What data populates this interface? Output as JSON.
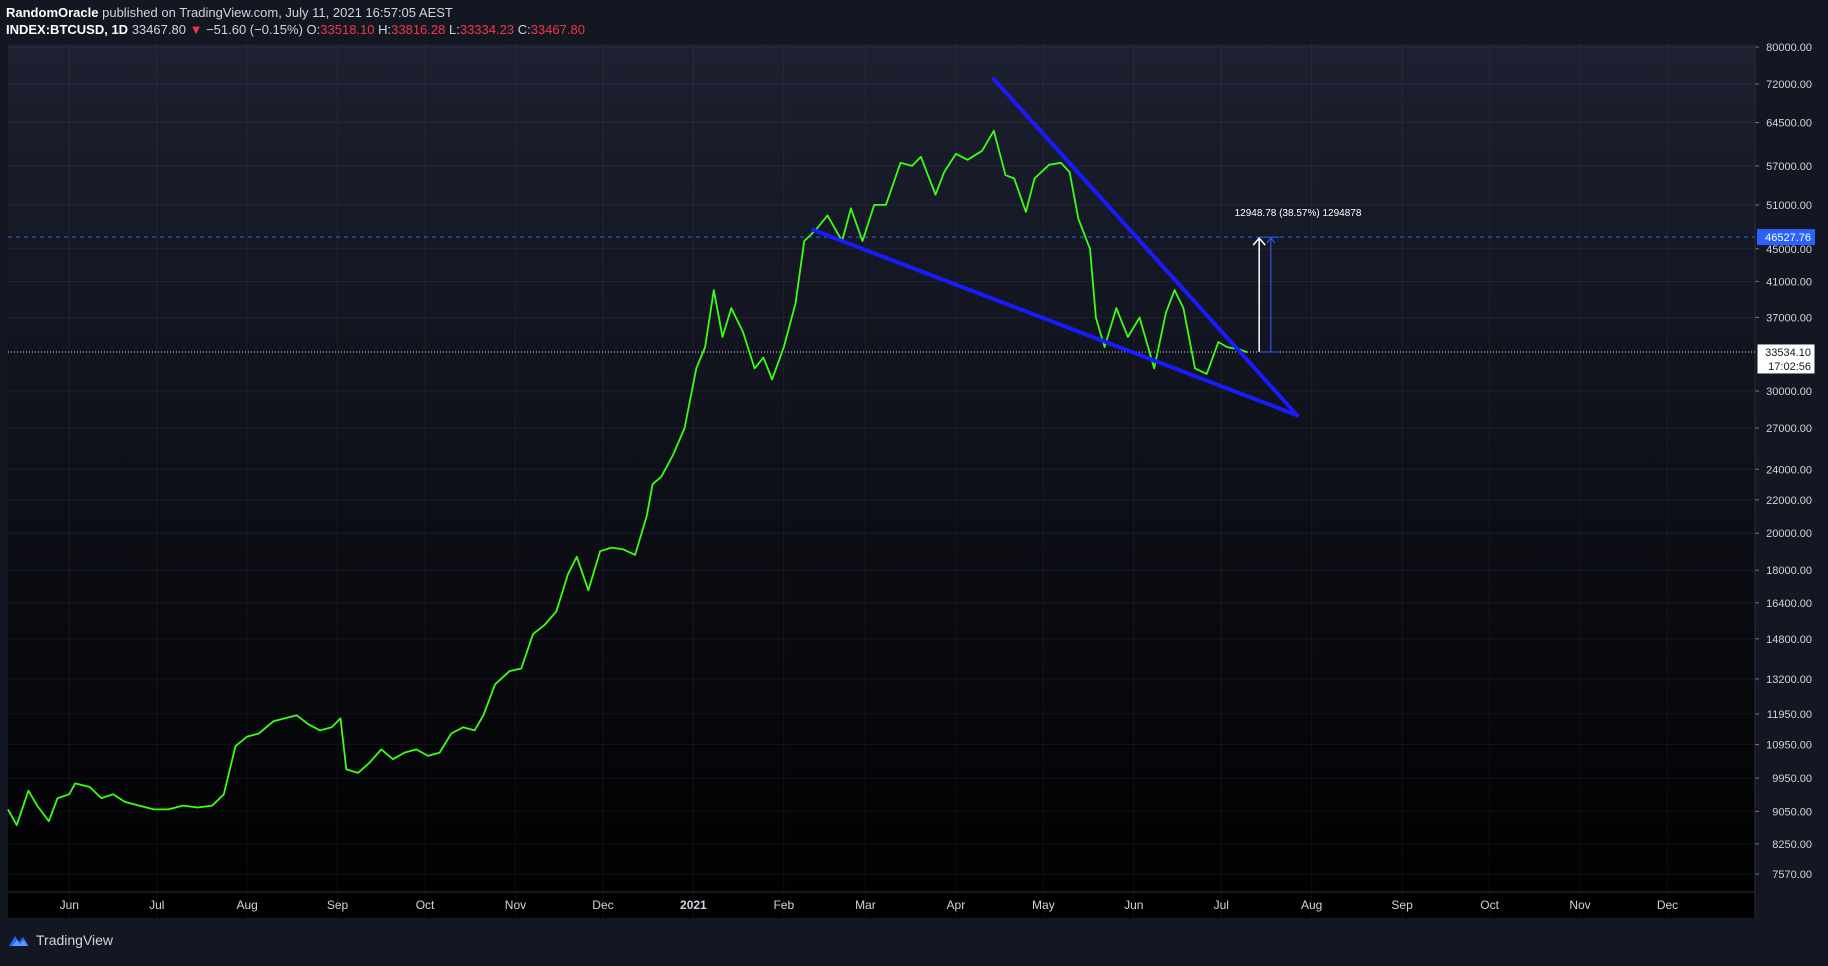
{
  "header": {
    "author": "RandomOracle",
    "published": "published on TradingView.com, July 11, 2021 16:57:05 AEST",
    "symbol": "INDEX:BTCUSD, 1D",
    "last": "33467.80",
    "change_arrow": "▼",
    "change": "−51.60 (−0.15%)",
    "o_label": "O:",
    "o_value": "33518.10",
    "h_label": "H:",
    "h_value": "33816.28",
    "l_label": "L:",
    "l_value": "33334.23",
    "c_label": "C:",
    "c_value": "33467.80"
  },
  "footer": {
    "brand": "TradingView"
  },
  "colors": {
    "background": "#131722",
    "price_line": "#39ff14",
    "trendline": "#1a1aff",
    "down": "#f23645",
    "text": "#d1d4dc"
  },
  "chart_data": {
    "type": "line",
    "title": "",
    "xlabel": "",
    "ylabel": "",
    "y_scale": "log",
    "ylim": [
      7000,
      82000
    ],
    "x_range": [
      "2020-05-11",
      "2021-12-31"
    ],
    "y_ticks": [
      "80000.00",
      "72000.00",
      "64500.00",
      "57000.00",
      "51000.00",
      "45000.00",
      "41000.00",
      "37000.00",
      "30000.00",
      "27000.00",
      "24000.00",
      "22000.00",
      "20000.00",
      "18000.00",
      "16400.00",
      "14800.00",
      "13200.00",
      "11950.00",
      "10950.00",
      "9950.00",
      "9050.00",
      "8250.00",
      "7570.00"
    ],
    "x_ticks": [
      {
        "date": "2020-06-01",
        "label": "Jun"
      },
      {
        "date": "2020-07-01",
        "label": "Jul"
      },
      {
        "date": "2020-08-01",
        "label": "Aug"
      },
      {
        "date": "2020-09-01",
        "label": "Sep"
      },
      {
        "date": "2020-10-01",
        "label": "Oct"
      },
      {
        "date": "2020-11-01",
        "label": "Nov"
      },
      {
        "date": "2020-12-01",
        "label": "Dec"
      },
      {
        "date": "2021-01-01",
        "label": "2021",
        "bold": true
      },
      {
        "date": "2021-02-01",
        "label": "Feb"
      },
      {
        "date": "2021-03-01",
        "label": "Mar"
      },
      {
        "date": "2021-04-01",
        "label": "Apr"
      },
      {
        "date": "2021-05-01",
        "label": "May"
      },
      {
        "date": "2021-06-01",
        "label": "Jun"
      },
      {
        "date": "2021-07-01",
        "label": "Jul"
      },
      {
        "date": "2021-08-01",
        "label": "Aug"
      },
      {
        "date": "2021-09-01",
        "label": "Sep"
      },
      {
        "date": "2021-10-01",
        "label": "Oct"
      },
      {
        "date": "2021-11-01",
        "label": "Nov"
      },
      {
        "date": "2021-12-01",
        "label": "Dec"
      }
    ],
    "series": [
      {
        "x": [
          "2020-05-11",
          "2020-05-14",
          "2020-05-18",
          "2020-05-21",
          "2020-05-25",
          "2020-05-28",
          "2020-06-01",
          "2020-06-03",
          "2020-06-08",
          "2020-06-12",
          "2020-06-16",
          "2020-06-20",
          "2020-06-25",
          "2020-06-30",
          "2020-07-05",
          "2020-07-10",
          "2020-07-15",
          "2020-07-20",
          "2020-07-24",
          "2020-07-28",
          "2020-08-01",
          "2020-08-05",
          "2020-08-10",
          "2020-08-14",
          "2020-08-18",
          "2020-08-22",
          "2020-08-26",
          "2020-08-30",
          "2020-09-02",
          "2020-09-04",
          "2020-09-08",
          "2020-09-12",
          "2020-09-16",
          "2020-09-20",
          "2020-09-24",
          "2020-09-28",
          "2020-10-02",
          "2020-10-06",
          "2020-10-10",
          "2020-10-14",
          "2020-10-18",
          "2020-10-21",
          "2020-10-25",
          "2020-10-30",
          "2020-11-03",
          "2020-11-07",
          "2020-11-11",
          "2020-11-15",
          "2020-11-19",
          "2020-11-22",
          "2020-11-26",
          "2020-11-30",
          "2020-12-04",
          "2020-12-08",
          "2020-12-12",
          "2020-12-16",
          "2020-12-18",
          "2020-12-21",
          "2020-12-25",
          "2020-12-29",
          "2021-01-02",
          "2021-01-05",
          "2021-01-08",
          "2021-01-11",
          "2021-01-14",
          "2021-01-18",
          "2021-01-22",
          "2021-01-25",
          "2021-01-28",
          "2021-02-01",
          "2021-02-05",
          "2021-02-08",
          "2021-02-12",
          "2021-02-16",
          "2021-02-21",
          "2021-02-24",
          "2021-02-28",
          "2021-03-04",
          "2021-03-08",
          "2021-03-13",
          "2021-03-17",
          "2021-03-20",
          "2021-03-25",
          "2021-03-28",
          "2021-04-01",
          "2021-04-05",
          "2021-04-10",
          "2021-04-14",
          "2021-04-18",
          "2021-04-21",
          "2021-04-25",
          "2021-04-28",
          "2021-05-03",
          "2021-05-07",
          "2021-05-10",
          "2021-05-13",
          "2021-05-17",
          "2021-05-19",
          "2021-05-22",
          "2021-05-26",
          "2021-05-30",
          "2021-06-03",
          "2021-06-08",
          "2021-06-12",
          "2021-06-15",
          "2021-06-18",
          "2021-06-22",
          "2021-06-26",
          "2021-06-30",
          "2021-07-03",
          "2021-07-07",
          "2021-07-10"
        ],
        "y": [
          9100,
          8700,
          9600,
          9200,
          8800,
          9400,
          9500,
          9800,
          9700,
          9400,
          9500,
          9300,
          9200,
          9100,
          9100,
          9200,
          9150,
          9200,
          9500,
          10900,
          11200,
          11300,
          11700,
          11800,
          11900,
          11600,
          11400,
          11500,
          11800,
          10200,
          10100,
          10400,
          10800,
          10500,
          10700,
          10800,
          10600,
          10700,
          11300,
          11500,
          11400,
          11900,
          13000,
          13500,
          13600,
          15000,
          15400,
          16000,
          17800,
          18700,
          17000,
          19000,
          19200,
          19100,
          18800,
          21000,
          23000,
          23500,
          25000,
          27000,
          32000,
          34000,
          40000,
          35000,
          38000,
          35500,
          32000,
          33000,
          31000,
          34000,
          38500,
          46000,
          47500,
          49500,
          46000,
          50500,
          46000,
          51000,
          51000,
          57500,
          57000,
          58500,
          52500,
          56000,
          59000,
          58000,
          59500,
          63000,
          55500,
          55000,
          50000,
          55000,
          57200,
          57500,
          56000,
          49000,
          45000,
          37000,
          34000,
          38000,
          35000,
          37000,
          32000,
          37500,
          40000,
          38000,
          32000,
          31500,
          34500,
          34000,
          33800,
          33500
        ],
        "name": ""
      }
    ],
    "annotations": {
      "resistance_line": {
        "from": {
          "x": "2021-04-14",
          "y": 73000
        },
        "to": {
          "x": "2021-07-27",
          "y": 28000
        }
      },
      "support_line": {
        "from": {
          "x": "2021-02-11",
          "y": 47500
        },
        "to": {
          "x": "2021-07-27",
          "y": 28000
        }
      },
      "target_label": "46527.76",
      "current_label": "33534.10",
      "countdown": "17:02:56",
      "measure_label": "12948.78 (38.57%) 1294878"
    }
  }
}
